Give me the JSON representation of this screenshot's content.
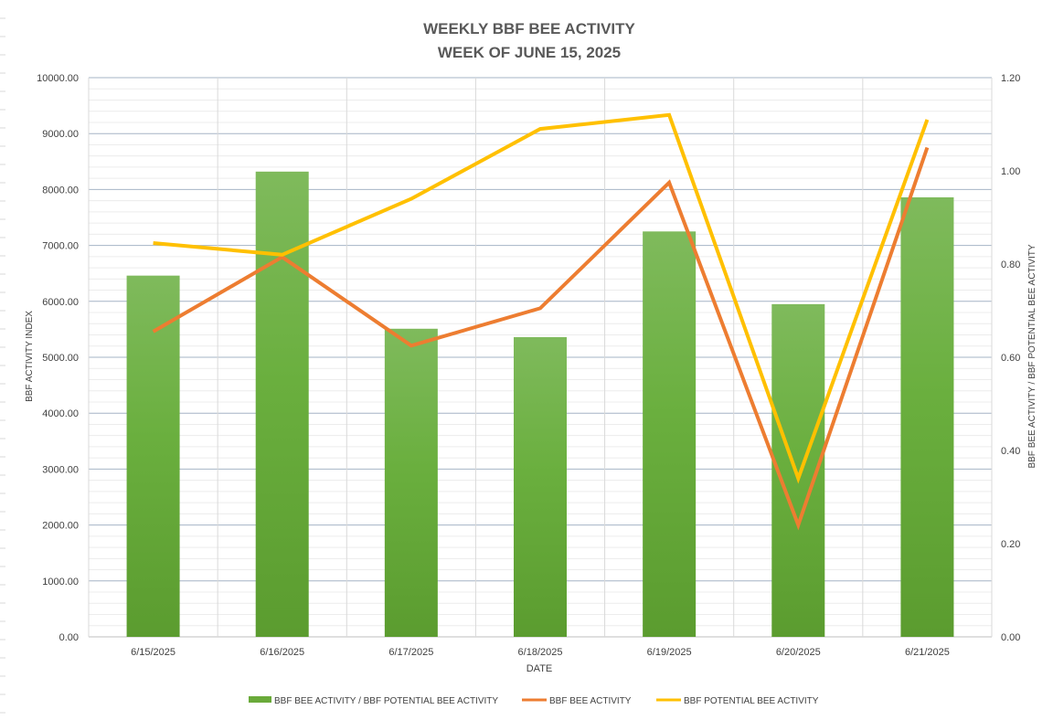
{
  "chart_data": {
    "type": "bar",
    "title_line1": "WEEKLY BBF BEE ACTIVITY",
    "title_line2": "WEEK OF JUNE 15, 2025",
    "xlabel": "DATE",
    "ylabel_left": "BBF ACTIVITY INDEX",
    "ylabel_right": "BBF BEE ACTIVITY / BBF POTENTIAL BEE ACTIVITY",
    "categories": [
      "6/15/2025",
      "6/16/2025",
      "6/17/2025",
      "6/18/2025",
      "6/19/2025",
      "6/20/2025",
      "6/21/2025"
    ],
    "ylim_left": [
      0,
      10000
    ],
    "ylim_right": [
      0,
      1.2
    ],
    "y_ticks_left": [
      "0.00",
      "1000.00",
      "2000.00",
      "3000.00",
      "4000.00",
      "5000.00",
      "6000.00",
      "7000.00",
      "8000.00",
      "9000.00",
      "10000.00"
    ],
    "y_ticks_right": [
      "0.00",
      "0.20",
      "0.40",
      "0.60",
      "0.80",
      "1.00",
      "1.20"
    ],
    "grid": true,
    "legend_position": "bottom",
    "series": [
      {
        "name": "BBF BEE ACTIVITY / BBF POTENTIAL BEE ACTIVITY",
        "type": "bar",
        "axis": "left",
        "color": "#6aaa3a",
        "values": [
          6460,
          8320,
          5510,
          5360,
          7250,
          5950,
          7860
        ]
      },
      {
        "name": "BBF BEE ACTIVITY",
        "type": "line",
        "axis": "right",
        "color": "#ed7d31",
        "values": [
          0.655,
          0.815,
          0.625,
          0.705,
          0.975,
          0.24,
          1.05
        ]
      },
      {
        "name": "BBF POTENTIAL BEE ACTIVITY",
        "type": "line",
        "axis": "right",
        "color": "#ffc000",
        "values": [
          0.845,
          0.82,
          0.94,
          1.09,
          1.12,
          0.34,
          1.11
        ]
      }
    ]
  }
}
